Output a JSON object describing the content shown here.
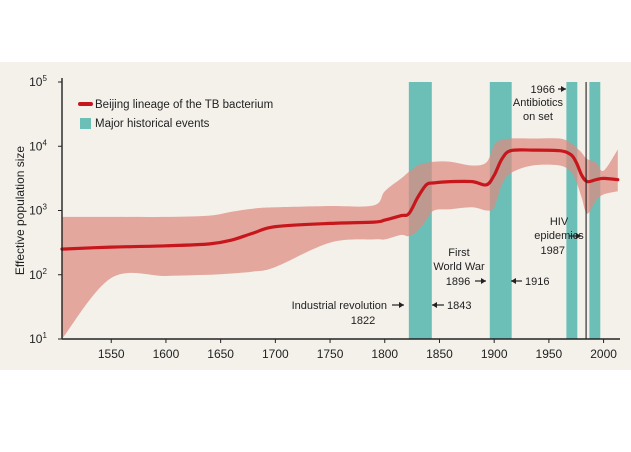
{
  "chart_data": {
    "type": "area",
    "title": "",
    "xlabel": "",
    "ylabel": "Effective population size",
    "xlim": [
      1505,
      2015
    ],
    "ylim_log10": [
      1,
      5
    ],
    "x_ticks": [
      1550,
      1600,
      1650,
      1700,
      1750,
      1800,
      1850,
      1900,
      1950,
      2000
    ],
    "y_ticks": [
      {
        "base": "10",
        "exp": "1",
        "log": 1
      },
      {
        "base": "10",
        "exp": "2",
        "log": 2
      },
      {
        "base": "10",
        "exp": "3",
        "log": 3
      },
      {
        "base": "10",
        "exp": "4",
        "log": 4
      },
      {
        "base": "10",
        "exp": "5",
        "log": 5
      }
    ],
    "legend": {
      "placement": "top-left",
      "items": [
        {
          "label": "Beijing lineage of the TB bacterium",
          "kind": "line",
          "color": "#c8161d"
        },
        {
          "label": "Major historical events",
          "kind": "band",
          "color": "#6cbfb7"
        }
      ]
    },
    "series": [
      {
        "name": "Beijing lineage of the TB bacterium",
        "color": "#c8161d",
        "band_color": "#dd8a80",
        "x": [
          1505,
          1550,
          1600,
          1640,
          1660,
          1680,
          1700,
          1750,
          1790,
          1800,
          1815,
          1822,
          1830,
          1838,
          1845,
          1860,
          1880,
          1893,
          1900,
          1907,
          1915,
          1935,
          1960,
          1970,
          1975,
          1980,
          1985,
          1993,
          2000,
          2013
        ],
        "y_log": [
          2.4,
          2.43,
          2.45,
          2.48,
          2.54,
          2.65,
          2.75,
          2.8,
          2.82,
          2.85,
          2.92,
          2.95,
          3.2,
          3.4,
          3.43,
          3.45,
          3.45,
          3.4,
          3.55,
          3.8,
          3.93,
          3.94,
          3.93,
          3.87,
          3.75,
          3.55,
          3.45,
          3.48,
          3.5,
          3.48
        ],
        "upper_log": [
          2.9,
          2.9,
          2.9,
          2.92,
          2.98,
          3.03,
          3.05,
          3.07,
          3.08,
          3.3,
          3.5,
          3.6,
          3.7,
          3.74,
          3.76,
          3.76,
          3.7,
          3.75,
          4.02,
          4.1,
          4.12,
          4.12,
          4.12,
          4.05,
          3.98,
          3.9,
          3.8,
          3.75,
          3.62,
          3.95
        ],
        "lower_log": [
          1.0,
          1.95,
          1.98,
          2.0,
          2.02,
          2.05,
          2.12,
          2.5,
          2.55,
          2.55,
          2.62,
          2.6,
          2.68,
          2.85,
          3.0,
          3.02,
          3.05,
          3.0,
          3.05,
          3.4,
          3.58,
          3.7,
          3.7,
          3.6,
          3.45,
          3.2,
          2.95,
          3.15,
          3.25,
          3.3
        ]
      }
    ],
    "events": [
      {
        "name": "Industrial revolution",
        "start": 1822,
        "end": 1843,
        "start_label": "1822",
        "end_label": "1843"
      },
      {
        "name": "First World War",
        "start": 1896,
        "end": 1916,
        "start_label": "1896",
        "end_label": "1916"
      },
      {
        "name": "Antibiotics on set",
        "start": 1966,
        "end": 1976,
        "start_label": "1966"
      },
      {
        "name": "HIV epidemics",
        "start": 1987,
        "end": 1997,
        "start_label": "1987"
      }
    ],
    "annotations": [
      {
        "id": "industrial",
        "lines": [
          "Industrial revolution",
          "1822"
        ]
      },
      {
        "id": "industrial-end",
        "lines": [
          "1843"
        ]
      },
      {
        "id": "ww1",
        "lines": [
          "First",
          "World War",
          "1896"
        ]
      },
      {
        "id": "ww1-end",
        "lines": [
          "1916"
        ]
      },
      {
        "id": "antibiotics",
        "lines": [
          "1966",
          "Antibiotics",
          "on set"
        ]
      },
      {
        "id": "hiv",
        "lines": [
          "HIV",
          "epidemics",
          "1987"
        ]
      }
    ],
    "marker_line_x": 1984
  }
}
